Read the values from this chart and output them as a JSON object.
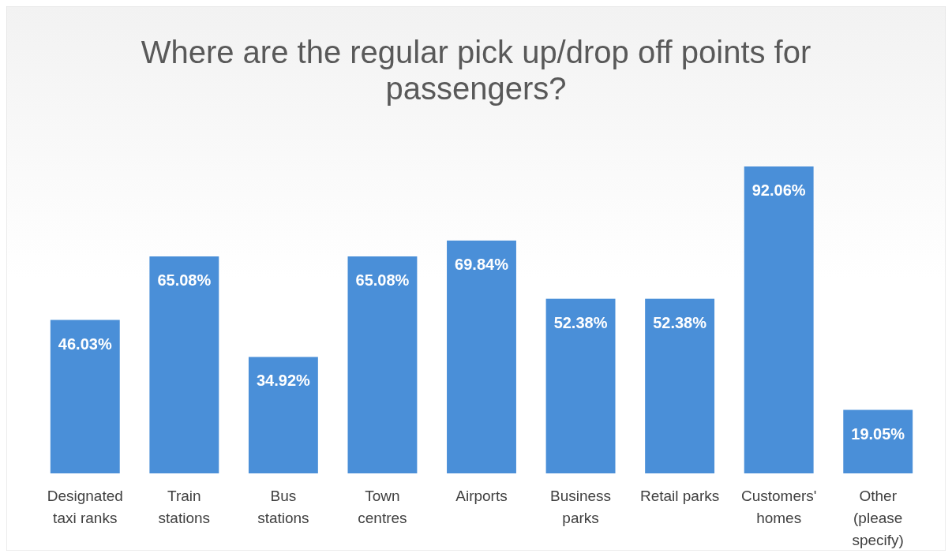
{
  "chart_data": {
    "type": "bar",
    "title": "Where are the regular pick up/drop off points for passengers?",
    "categories": [
      "Designated taxi ranks",
      "Train stations",
      "Bus stations",
      "Town centres",
      "Airports",
      "Business parks",
      "Retail parks",
      "Customers' homes",
      "Other (please specify)"
    ],
    "values": [
      46.03,
      65.08,
      34.92,
      65.08,
      69.84,
      52.38,
      52.38,
      92.06,
      19.05
    ],
    "value_labels": [
      "46.03%",
      "65.08%",
      "34.92%",
      "65.08%",
      "69.84%",
      "52.38%",
      "52.38%",
      "92.06%",
      "19.05%"
    ],
    "color": "#4a8fd8"
  }
}
